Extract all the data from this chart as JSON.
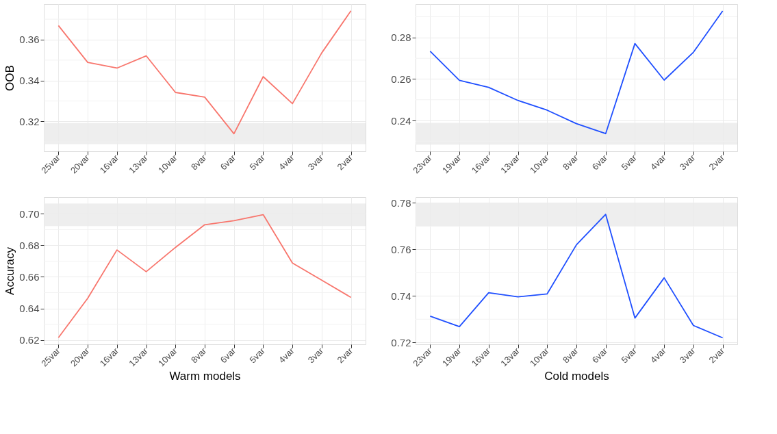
{
  "chart_data": [
    {
      "type": "line",
      "ylabel": "OOB",
      "categories": [
        "25var",
        "20var",
        "16var",
        "13var",
        "10var",
        "8var",
        "6var",
        "5var",
        "4var",
        "3var",
        "2var"
      ],
      "series": [
        {
          "color": "#f8766d",
          "values": [
            0.3669,
            0.3489,
            0.3461,
            0.3521,
            0.3342,
            0.3319,
            0.314,
            0.3419,
            0.3287,
            0.3535,
            0.3741
          ]
        }
      ],
      "ylim": [
        0.3054,
        0.3774
      ],
      "yticks": [
        {
          "value": 0.31,
          "label": null
        },
        {
          "value": 0.32,
          "label": "0.32"
        },
        {
          "value": 0.33,
          "label": null
        },
        {
          "value": 0.34,
          "label": "0.34"
        },
        {
          "value": 0.35,
          "label": null
        },
        {
          "value": 0.36,
          "label": "0.36"
        },
        {
          "value": 0.37,
          "label": null
        }
      ],
      "bands": [
        {
          "axis": "y",
          "from": 0.3089,
          "to": 0.3192,
          "color": "#ebebeb"
        }
      ],
      "grid": true
    },
    {
      "type": "line",
      "categories": [
        "23var",
        "19var",
        "16var",
        "13var",
        "10var",
        "8var",
        "6var",
        "5var",
        "4var",
        "3var",
        "2var"
      ],
      "series": [
        {
          "color": "#1f4fff",
          "values": [
            0.2734,
            0.2594,
            0.256,
            0.2497,
            0.245,
            0.2385,
            0.2337,
            0.2771,
            0.2595,
            0.2729,
            0.2928
          ]
        }
      ],
      "ylim": [
        0.2252,
        0.2961
      ],
      "yticks": [
        {
          "value": 0.23,
          "label": null
        },
        {
          "value": 0.24,
          "label": "0.24"
        },
        {
          "value": 0.25,
          "label": null
        },
        {
          "value": 0.26,
          "label": "0.26"
        },
        {
          "value": 0.27,
          "label": null
        },
        {
          "value": 0.28,
          "label": "0.28"
        },
        {
          "value": 0.29,
          "label": null
        }
      ],
      "bands": [
        {
          "axis": "y",
          "from": 0.2284,
          "to": 0.2389,
          "color": "#ebebeb"
        }
      ],
      "grid": true
    },
    {
      "type": "line",
      "ylabel": "Accuracy",
      "xlabel": "Warm models",
      "categories": [
        "25var",
        "20var",
        "16var",
        "13var",
        "10var",
        "8var",
        "6var",
        "5var",
        "4var",
        "3var",
        "2var"
      ],
      "series": [
        {
          "color": "#f8766d",
          "values": [
            0.6214,
            0.6464,
            0.6771,
            0.6633,
            0.6787,
            0.6931,
            0.6957,
            0.6995,
            0.6688,
            0.6579,
            0.647
          ]
        }
      ],
      "ylim": [
        0.6172,
        0.7106
      ],
      "yticks": [
        {
          "value": 0.62,
          "label": "0.62"
        },
        {
          "value": 0.63,
          "label": null
        },
        {
          "value": 0.64,
          "label": "0.64"
        },
        {
          "value": 0.65,
          "label": null
        },
        {
          "value": 0.66,
          "label": "0.66"
        },
        {
          "value": 0.67,
          "label": null
        },
        {
          "value": 0.68,
          "label": "0.68"
        },
        {
          "value": 0.69,
          "label": null
        },
        {
          "value": 0.7,
          "label": "0.70"
        }
      ],
      "bands": [
        {
          "axis": "y",
          "from": 0.6923,
          "to": 0.7066,
          "color": "#ebebeb"
        }
      ],
      "grid": true
    },
    {
      "type": "line",
      "xlabel": "Cold models",
      "categories": [
        "23var",
        "19var",
        "16var",
        "13var",
        "10var",
        "8var",
        "6var",
        "5var",
        "4var",
        "3var",
        "2var"
      ],
      "series": [
        {
          "color": "#1f4fff",
          "values": [
            0.7313,
            0.7268,
            0.7414,
            0.7396,
            0.7409,
            0.762,
            0.7751,
            0.7305,
            0.7478,
            0.7273,
            0.722
          ]
        }
      ],
      "ylim": [
        0.7192,
        0.7825
      ],
      "yticks": [
        {
          "value": 0.72,
          "label": "0.72"
        },
        {
          "value": 0.73,
          "label": null
        },
        {
          "value": 0.74,
          "label": "0.74"
        },
        {
          "value": 0.75,
          "label": null
        },
        {
          "value": 0.76,
          "label": "0.76"
        },
        {
          "value": 0.77,
          "label": null
        },
        {
          "value": 0.78,
          "label": "0.78"
        }
      ],
      "bands": [
        {
          "axis": "y",
          "from": 0.7699,
          "to": 0.7801,
          "color": "#ebebeb"
        }
      ],
      "grid": true
    }
  ]
}
